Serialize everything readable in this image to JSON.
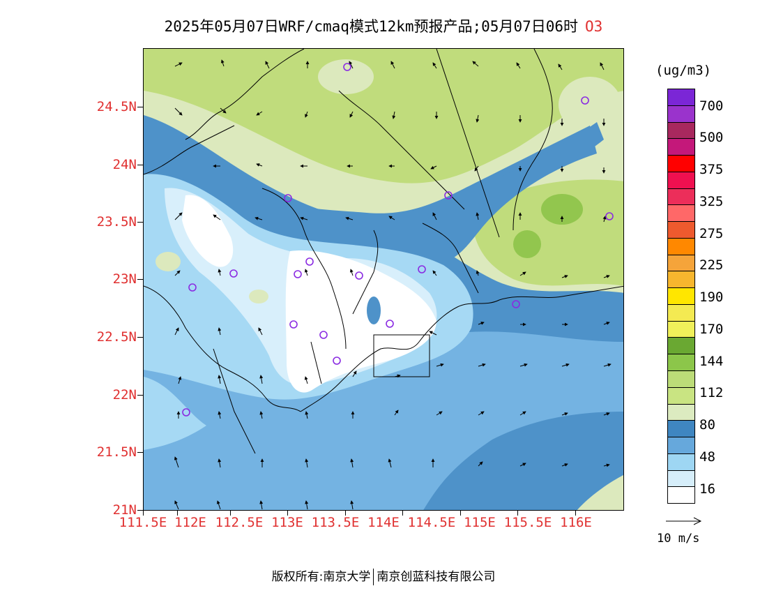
{
  "title": {
    "text": "2025年05月07日WRF/cmaq模式12km预报产品;05月07日06时",
    "species": "O3"
  },
  "map": {
    "lat_labels": [
      "24.5N",
      "24N",
      "23.5N",
      "23N",
      "22.5N",
      "22N",
      "21.5N",
      "21N"
    ],
    "lon_labels": [
      "111.5E",
      "112E",
      "112.5E",
      "113E",
      "113.5E",
      "114E",
      "114.5E",
      "115E",
      "115.5E",
      "116E"
    ],
    "colors": {
      "ocean": "#4e92c9",
      "ocean_light": "#74b3e2",
      "low": "#a6d9f4",
      "very_low": "#d8effb",
      "white": "#ffffff",
      "land_pale": "#dce9bd",
      "land_green": "#c0dc7c",
      "land_bright": "#92c64e"
    }
  },
  "legend": {
    "unit": "(ug/m3)",
    "labels": [
      "700",
      "500",
      "375",
      "325",
      "275",
      "225",
      "190",
      "170",
      "144",
      "112",
      "80",
      "48",
      "16"
    ],
    "colors": [
      "#7b26d6",
      "#9a33cc",
      "#a8285e",
      "#c4187a",
      "#ff0000",
      "#f01050",
      "#ec2e5a",
      "#ff6868",
      "#ee5a2e",
      "#ff8800",
      "#f5a43a",
      "#f7b62e",
      "#ffe600",
      "#f4ea52",
      "#f0f05a",
      "#6aa832",
      "#8cc64a",
      "#bcdc78",
      "#c9e482",
      "#dcebc0",
      "#3f86c1",
      "#66a8dc",
      "#9ed6f3",
      "#d6eefa",
      "#ffffff"
    ]
  },
  "wind_reference": {
    "label": "10  m/s"
  },
  "copyright": {
    "left": "版权所有:南京大学",
    "right": "南京创蓝科技有限公司"
  }
}
